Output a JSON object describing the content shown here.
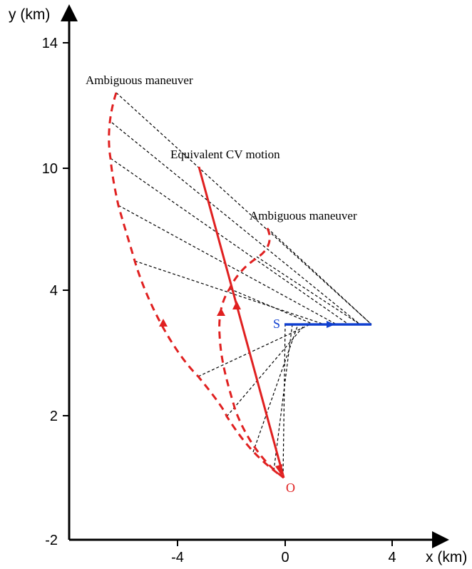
{
  "axes": {
    "x_label": "x (km)",
    "y_label": "y (km)",
    "x_ticks": [
      "-4",
      "0",
      "4"
    ],
    "y_ticks": [
      "14",
      "10",
      "4",
      "2",
      "-2"
    ]
  },
  "annotations": {
    "ambiguous_top": "Ambiguous maneuver",
    "equivalent_cv": "Equivalent CV motion",
    "ambiguous_mid": "Ambiguous maneuver"
  },
  "points": {
    "observer": "O",
    "sensor": "S"
  },
  "colors": {
    "trajectory": "#e02020",
    "sensor_track": "#1040d0",
    "construction": "#000000"
  }
}
